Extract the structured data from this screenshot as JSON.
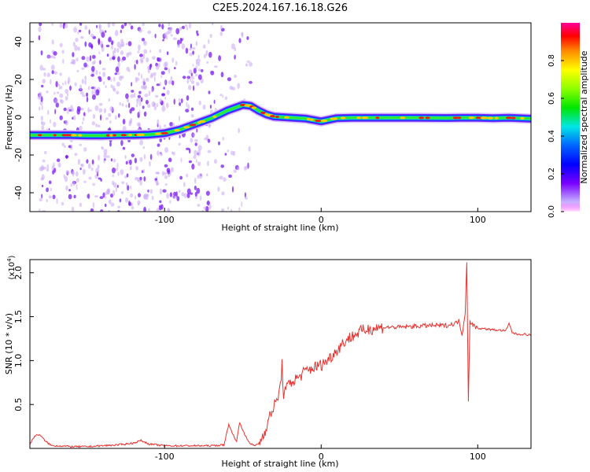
{
  "title": "C2E5.2024.167.16.18.G26",
  "colors": {
    "snr_line": "#e8322f",
    "axis": "#000000",
    "spectrogram_scatter": "#8a3cf0"
  },
  "chart_data": [
    {
      "type": "heatmap",
      "name": "spectrogram",
      "title": "C2E5.2024.167.16.18.G26",
      "xlabel": "Height of straight line (km)",
      "ylabel": "Frequency (Hz)",
      "xlim": [
        -186,
        134
      ],
      "ylim": [
        -50,
        50
      ],
      "x_ticks": [
        -100,
        0,
        100
      ],
      "x_tick_labels": [
        "-100",
        "0",
        "100"
      ],
      "y_ticks": [
        -40,
        -20,
        0,
        20,
        40
      ],
      "y_tick_labels": [
        "-40",
        "-20",
        "0",
        "20",
        "40"
      ],
      "colorbar": {
        "label": "Normalized spectral amplitude",
        "range": [
          0,
          1
        ],
        "ticks": [
          0.0,
          0.2,
          0.4,
          0.6,
          0.8
        ],
        "tick_labels": [
          "0.0",
          "0.2",
          "0.4",
          "0.6",
          "0.8"
        ],
        "colormap": "rainbow"
      },
      "ridge": {
        "x": [
          -186,
          -170,
          -160,
          -150,
          -140,
          -130,
          -120,
          -110,
          -100,
          -90,
          -80,
          -70,
          -60,
          -55,
          -50,
          -45,
          -40,
          -35,
          -30,
          -20,
          -10,
          0,
          10,
          20,
          40,
          60,
          80,
          90,
          100,
          110,
          120,
          134
        ],
        "y": [
          -9.5,
          -9.5,
          -9.5,
          -9.7,
          -9.7,
          -9.5,
          -9.4,
          -9.2,
          -8.5,
          -6.5,
          -3.5,
          -0.5,
          3.5,
          5,
          6.5,
          6,
          3.5,
          1.5,
          0.3,
          -0.2,
          -0.7,
          -2.2,
          -0.5,
          -0.3,
          -0.3,
          -0.3,
          -0.4,
          -0.3,
          -0.3,
          -0.5,
          -0.3,
          -0.8
        ]
      }
    },
    {
      "type": "line",
      "name": "snr",
      "xlabel": "Height of straight line (km)",
      "ylabel": "SNR (10 * v/v)",
      "y_multiplier_label": "(x10",
      "y_multiplier_exponent": "4",
      "y_multiplier_suffix": ")",
      "xlim": [
        -186,
        134
      ],
      "ylim": [
        0,
        2.15
      ],
      "x_ticks": [
        -100,
        0,
        100
      ],
      "x_tick_labels": [
        "-100",
        "0",
        "100"
      ],
      "y_ticks": [
        0.5,
        1.0,
        1.5,
        2.0
      ],
      "y_tick_labels": [
        "0.5",
        "1.0",
        "1.5",
        "2.0"
      ],
      "series": [
        {
          "x": [
            -186,
            -183,
            -180,
            -176,
            -172,
            -168,
            -160,
            -150,
            -140,
            -130,
            -120,
            -115,
            -110,
            -100,
            -90,
            -80,
            -70,
            -62,
            -59,
            -57,
            -54,
            -52,
            -49,
            -46,
            -43,
            -40,
            -37,
            -34,
            -31,
            -28,
            -26,
            -25,
            -24,
            -22,
            -20,
            -15,
            -10,
            -5,
            0,
            5,
            10,
            15,
            20,
            25,
            30,
            40,
            50,
            60,
            70,
            80,
            85,
            88,
            90,
            92,
            93,
            94,
            95,
            97,
            100,
            110,
            118,
            120,
            122,
            125,
            130,
            134
          ],
          "y": [
            0.05,
            0.14,
            0.16,
            0.08,
            0.03,
            0.03,
            0.02,
            0.02,
            0.03,
            0.04,
            0.06,
            0.09,
            0.05,
            0.03,
            0.03,
            0.03,
            0.03,
            0.04,
            0.28,
            0.18,
            0.08,
            0.3,
            0.16,
            0.07,
            0.03,
            0.05,
            0.15,
            0.3,
            0.45,
            0.55,
            0.72,
            0.95,
            0.62,
            0.68,
            0.75,
            0.8,
            0.88,
            0.92,
            0.95,
            1.02,
            1.12,
            1.22,
            1.28,
            1.33,
            1.36,
            1.38,
            1.38,
            1.39,
            1.4,
            1.4,
            1.42,
            1.45,
            1.3,
            1.55,
            2.12,
            0.55,
            1.45,
            1.4,
            1.37,
            1.35,
            1.34,
            1.42,
            1.32,
            1.3,
            1.3,
            1.29
          ]
        }
      ]
    }
  ]
}
